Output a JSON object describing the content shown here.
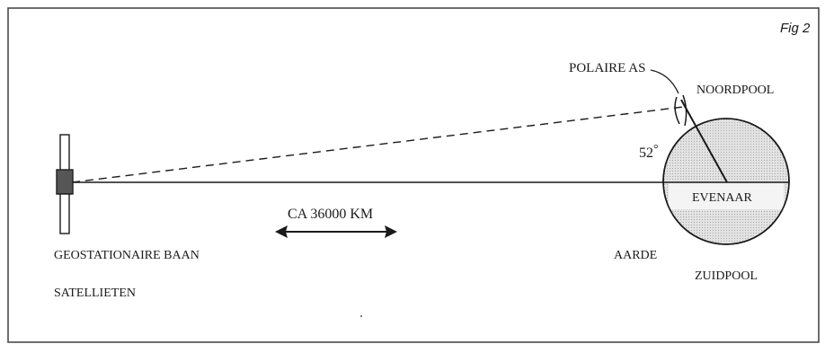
{
  "figure": {
    "label": "Fig 2"
  },
  "labels": {
    "polar_axis": "POLAIRE AS",
    "north_pole": "NOORDPOOL",
    "angle": "52",
    "angle_unit": "°",
    "equator": "EVENAAR",
    "earth": "AARDE",
    "south_pole": "ZUIDPOOL",
    "distance": "CA 36000 KM",
    "orbit": "GEOSTATIONAIRE BAAN",
    "satellites": "SATELLIETEN"
  },
  "colors": {
    "frame": "#4a4a4a",
    "line": "#1a1a1a",
    "earth_fill": "#d9d9d9",
    "equator_band": "#f2f2f2",
    "satellite_body": "#555555"
  }
}
